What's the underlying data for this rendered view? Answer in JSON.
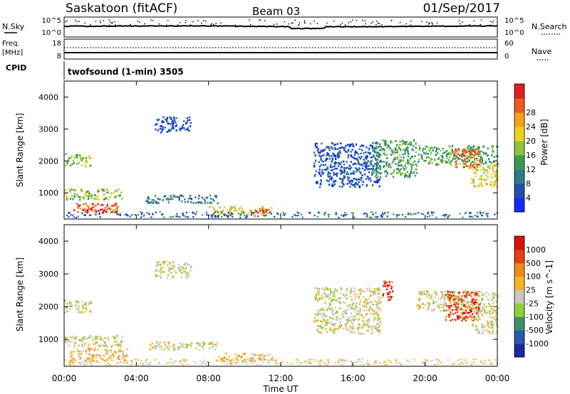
{
  "header": {
    "station": "Saskatoon (fitACF)",
    "beam": "Beam 03",
    "date": "01/Sep/2017"
  },
  "noise_panel": {
    "left_label": "N.Sky",
    "right_label": "N.Search",
    "left_ticks": [
      "10^5",
      "10^0"
    ],
    "right_ticks": [
      "10^5",
      "10^0"
    ]
  },
  "freq_panel": {
    "left_label": "Freq.",
    "left_unit": "[MHz]",
    "right_label": "Nave",
    "left_ticks": [
      "18",
      "8"
    ],
    "right_ticks": [
      "60",
      "0"
    ],
    "cpid_label": "CPID",
    "cpid_text": "twofsound (1-min) 3505"
  },
  "x_axis": {
    "title": "Time UT",
    "ticks": [
      "00:00",
      "04:00",
      "08:00",
      "12:00",
      "16:00",
      "20:00",
      "00:00"
    ]
  },
  "chart_data": [
    {
      "type": "heatmap",
      "name": "power",
      "ylabel": "Slant Range [km]",
      "yticks": [
        1000,
        2000,
        3000,
        4000
      ],
      "ylim": [
        180,
        4500
      ],
      "xlim_hours": [
        0,
        24
      ],
      "colorbar": {
        "label": "Power [dB]",
        "ticks": [
          "4",
          "8",
          "12",
          "16",
          "20",
          "24",
          "28"
        ],
        "colors": [
          "#1428ff",
          "#2050b0",
          "#2e7a8a",
          "#3a9a50",
          "#8cc63e",
          "#f2d020",
          "#f5a020",
          "#ef5a1e",
          "#e11f1f"
        ]
      },
      "regions": [
        {
          "t": [
            0.0,
            1.5
          ],
          "r": [
            1850,
            2250
          ],
          "level": 4
        },
        {
          "t": [
            0.0,
            3.2
          ],
          "r": [
            800,
            1150
          ],
          "level": 4
        },
        {
          "t": [
            0.5,
            3.0
          ],
          "r": [
            400,
            700
          ],
          "level": 7
        },
        {
          "t": [
            1.0,
            2.2
          ],
          "r": [
            420,
            560
          ],
          "level": 8
        },
        {
          "t": [
            5.0,
            7.0
          ],
          "r": [
            2900,
            3400
          ],
          "level": 1
        },
        {
          "t": [
            4.5,
            8.5
          ],
          "r": [
            700,
            950
          ],
          "level": 2
        },
        {
          "t": [
            8.0,
            11.5
          ],
          "r": [
            350,
            600
          ],
          "level": 5
        },
        {
          "t": [
            10.2,
            11.3
          ],
          "r": [
            380,
            500
          ],
          "level": 8
        },
        {
          "t": [
            13.8,
            17.5
          ],
          "r": [
            1200,
            2600
          ],
          "level": 1
        },
        {
          "t": [
            17.0,
            19.5
          ],
          "r": [
            1500,
            2700
          ],
          "level": 3
        },
        {
          "t": [
            19.5,
            24.0
          ],
          "r": [
            1900,
            2500
          ],
          "level": 3
        },
        {
          "t": [
            21.5,
            23.0
          ],
          "r": [
            1800,
            2400
          ],
          "level": 7
        },
        {
          "t": [
            22.5,
            24.0
          ],
          "r": [
            1200,
            1900
          ],
          "level": 5
        }
      ]
    },
    {
      "type": "heatmap",
      "name": "velocity",
      "ylabel": "Slant Range [km]",
      "yticks": [
        1000,
        2000,
        3000,
        4000
      ],
      "ylim": [
        180,
        4500
      ],
      "xlim_hours": [
        0,
        24
      ],
      "colorbar": {
        "label": "Velocity [m s^-1]",
        "ticks": [
          "1000",
          "500",
          "100",
          "25",
          "-25",
          "-100",
          "-500",
          "-1000"
        ],
        "colors": [
          "#1c2aa0",
          "#2a5aa8",
          "#3c8f6a",
          "#8fd03a",
          "#c8c8c0",
          "#f5b62a",
          "#f08a1a",
          "#e83c14",
          "#d81010"
        ]
      },
      "regions": [
        {
          "t": [
            0.0,
            1.5
          ],
          "r": [
            1850,
            2250
          ],
          "level": 4
        },
        {
          "t": [
            0.0,
            3.2
          ],
          "r": [
            800,
            1150
          ],
          "level": 4
        },
        {
          "t": [
            0.3,
            3.5
          ],
          "r": [
            350,
            750
          ],
          "level": 5
        },
        {
          "t": [
            5.0,
            7.0
          ],
          "r": [
            2900,
            3400
          ],
          "level": 4
        },
        {
          "t": [
            4.5,
            8.5
          ],
          "r": [
            700,
            950
          ],
          "level": 4
        },
        {
          "t": [
            8.5,
            11.5
          ],
          "r": [
            350,
            600
          ],
          "level": 5
        },
        {
          "t": [
            13.8,
            17.5
          ],
          "r": [
            1200,
            2600
          ],
          "level": 4
        },
        {
          "t": [
            17.6,
            18.2
          ],
          "r": [
            2200,
            2800
          ],
          "level": 7
        },
        {
          "t": [
            19.5,
            24.0
          ],
          "r": [
            1900,
            2500
          ],
          "level": 4
        },
        {
          "t": [
            21.0,
            23.0
          ],
          "r": [
            1600,
            2500
          ],
          "level": 7
        },
        {
          "t": [
            22.5,
            24.0
          ],
          "r": [
            1200,
            1900
          ],
          "level": 4
        }
      ]
    }
  ]
}
